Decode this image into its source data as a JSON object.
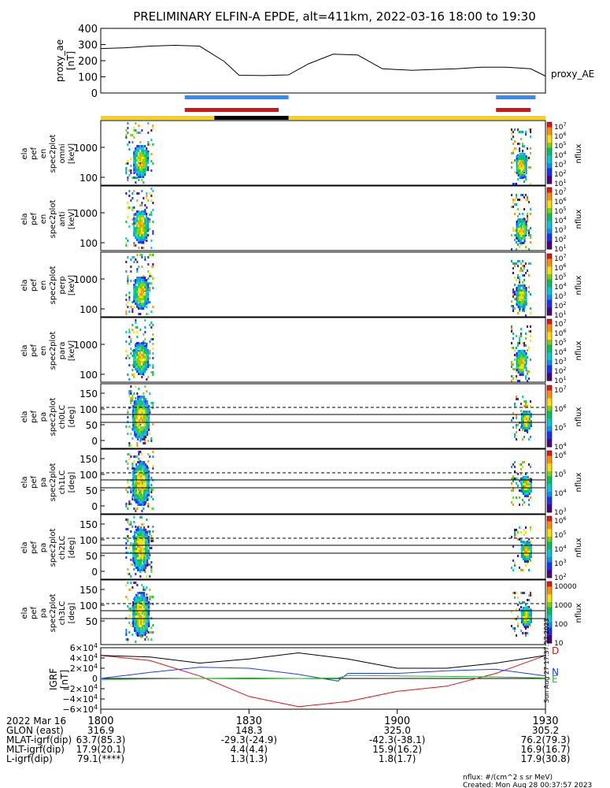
{
  "title": "PRELIMINARY ELFIN-A EPDE, alt=411km, 2022-03-16 18:00 to 19:30",
  "created": "Created: Mon Aug 28 00:37:57 2023",
  "sideStamp": "Sun Aug 27 17:37:57 2023",
  "unitsNote": "nflux: #/(cm^2 s sr MeV)",
  "colors": {
    "blueBar": "#2f8cff",
    "redBar": "#e01010",
    "yellow": "#ffd200",
    "black": "#000000",
    "dashed": "#000000",
    "traceD": "#e01010",
    "traceN": "#1a3cff",
    "traceE": "#22bb22",
    "traceTotal": "#000000"
  },
  "chart_data": [
    {
      "type": "line",
      "name": "proxy_ae",
      "ylabel": "proxy_ae [nT]",
      "legend": "proxy_AE",
      "ylim": [
        0,
        400
      ],
      "yticks": [
        "400",
        "300",
        "200",
        "100",
        "0"
      ],
      "x": [
        0,
        5,
        10,
        15,
        20,
        25,
        28,
        33,
        38,
        42,
        47,
        52,
        57,
        62,
        63,
        67,
        72,
        77,
        82,
        87,
        90
      ],
      "values": [
        275,
        280,
        290,
        295,
        290,
        195,
        110,
        108,
        112,
        180,
        240,
        235,
        150,
        142,
        140,
        145,
        150,
        160,
        160,
        150,
        105
      ]
    },
    {
      "type": "bars",
      "name": "status-bars",
      "blue": [
        [
          17,
          38
        ],
        [
          80,
          88
        ]
      ],
      "red": [
        [
          17,
          36
        ],
        [
          80,
          87
        ]
      ],
      "black_segment": [
        23,
        38
      ],
      "yellow_full": [
        0,
        90
      ]
    },
    {
      "type": "heatmap",
      "name": "energy-spectrograms",
      "panels": [
        {
          "ylabel": [
            "ela",
            "pef",
            "en",
            "spec2plot",
            "omni",
            "[keV]"
          ],
          "yticks": [
            "1000",
            "100"
          ],
          "colorbar": [
            "10^7",
            "10^6",
            "10^5",
            "10^4",
            "10^3",
            "10^2",
            "10^1"
          ],
          "cblabel": "nflux"
        },
        {
          "ylabel": [
            "ela",
            "pef",
            "en",
            "spec2plot",
            "anti",
            "[keV]"
          ],
          "yticks": [
            "1000",
            "100"
          ],
          "colorbar": [
            "10^7",
            "10^6",
            "10^5",
            "10^4",
            "10^3",
            "10^2",
            "10^1"
          ],
          "cblabel": "nflux"
        },
        {
          "ylabel": [
            "ela",
            "pef",
            "en",
            "spec2plot",
            "perp",
            "[keV]"
          ],
          "yticks": [
            "1000",
            "100"
          ],
          "colorbar": [
            "10^7",
            "10^6",
            "10^5",
            "10^4",
            "10^3",
            "10^2",
            "10^1"
          ],
          "cblabel": "nflux"
        },
        {
          "ylabel": [
            "ela",
            "pef",
            "en",
            "spec2plot",
            "para",
            "[keV]"
          ],
          "yticks": [
            "1000",
            "100"
          ],
          "colorbar": [
            "10^7",
            "10^6",
            "10^5",
            "10^4",
            "10^3",
            "10^2",
            "10^1"
          ],
          "cblabel": "nflux"
        }
      ]
    },
    {
      "type": "heatmap",
      "name": "pitch-angle-spectrograms",
      "panels": [
        {
          "ylabel": [
            "ela",
            "pef",
            "pa",
            "spec2plot",
            "ch0LC",
            "[deg]"
          ],
          "yticks": [
            "150",
            "100",
            "50",
            "0"
          ],
          "colorbar": [
            "10^7",
            "10^6",
            "10^5",
            "10^4"
          ],
          "cblabel": "nflux"
        },
        {
          "ylabel": [
            "ela",
            "pef",
            "pa",
            "spec2plot",
            "ch1LC",
            "[deg]"
          ],
          "yticks": [
            "150",
            "100",
            "50",
            "0"
          ],
          "colorbar": [
            "10^6",
            "10^5",
            "10^4",
            "10^3"
          ],
          "cblabel": "nflux"
        },
        {
          "ylabel": [
            "ela",
            "pef",
            "pa",
            "spec2plot",
            "ch2LC",
            "[deg]"
          ],
          "yticks": [
            "150",
            "100",
            "50",
            "0"
          ],
          "colorbar": [
            "10^6",
            "10^5",
            "10^4",
            "10^3",
            "10^2"
          ],
          "cblabel": "nflux"
        },
        {
          "ylabel": [
            "ela",
            "pef",
            "pa",
            "spec2plot",
            "ch3LC",
            "[deg]"
          ],
          "yticks": [
            "150",
            "100",
            "50"
          ],
          "colorbar": [
            "10000",
            "1000",
            "100",
            "10"
          ],
          "cblabel": "nflux"
        }
      ]
    },
    {
      "type": "line",
      "name": "igrf",
      "ylabel": "IGRF [nT]",
      "yticks": [
        "6×10^4",
        "4×10^4",
        "2×10^4",
        "0",
        "−2×10^4",
        "−4×10^4",
        "−6×10^4"
      ],
      "ylim": [
        -60000,
        60000
      ],
      "legend": [
        "D",
        "N",
        "E"
      ],
      "series": [
        {
          "name": "D",
          "x": [
            0,
            10,
            20,
            30,
            40,
            50,
            60,
            70,
            80,
            90
          ],
          "values": [
            45000,
            35000,
            5000,
            -35000,
            -55000,
            -45000,
            -25000,
            -15000,
            10000,
            45000
          ]
        },
        {
          "name": "N",
          "x": [
            0,
            10,
            20,
            30,
            40,
            48,
            50,
            60,
            70,
            80,
            90
          ],
          "values": [
            0,
            12000,
            22000,
            20000,
            8000,
            -5000,
            10000,
            10000,
            15000,
            18000,
            5000
          ]
        },
        {
          "name": "E",
          "x": [
            0,
            10,
            20,
            30,
            40,
            48,
            50,
            60,
            70,
            80,
            90
          ],
          "values": [
            -2000,
            -1000,
            0,
            1000,
            0,
            1000,
            6000,
            5000,
            4000,
            3000,
            1000
          ]
        },
        {
          "x": [
            0,
            10,
            20,
            30,
            40,
            50,
            60,
            70,
            80,
            90
          ],
          "values": [
            45000,
            42000,
            30000,
            38000,
            50000,
            38000,
            20000,
            20000,
            30000,
            45000
          ]
        }
      ]
    }
  ],
  "bottom": {
    "times": [
      "1800",
      "1830",
      "1900",
      "1930"
    ],
    "rows": [
      {
        "label": "2022 Mar 16",
        "values": [
          "",
          "",
          "",
          ""
        ]
      },
      {
        "label": "GLON (east)",
        "values": [
          "316.9",
          "148.3",
          "325.0",
          "305.2"
        ]
      },
      {
        "label": "MLAT-igrf(dip)",
        "values": [
          "63.7(85.3)",
          "-29.3(-24.9)",
          "-42.3(-38.1)",
          "76.2(79.3)"
        ]
      },
      {
        "label": "MLT-igrf(dip)",
        "values": [
          "17.9(20.1)",
          "4.4(4.4)",
          "15.9(16.2)",
          "16.9(16.7)"
        ]
      },
      {
        "label": "L-igrf(dip)",
        "values": [
          "79.1(****)",
          "1.3(1.3)",
          "1.8(1.7)",
          "17.9(30.8)"
        ]
      }
    ]
  }
}
